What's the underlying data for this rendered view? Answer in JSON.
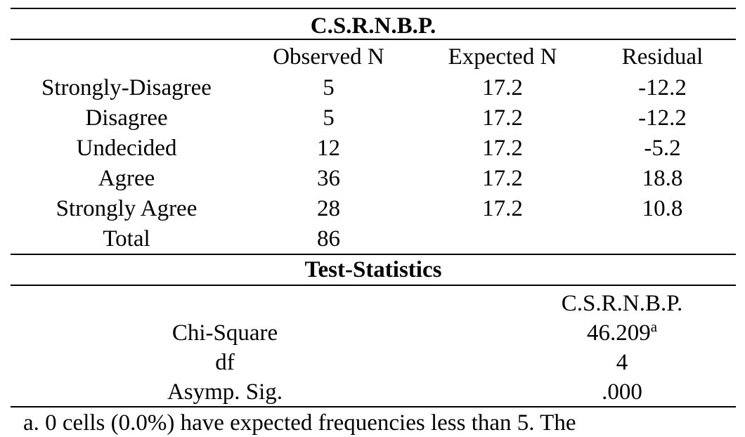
{
  "frequencies": {
    "title": "C.S.R.N.B.P.",
    "headers": [
      "",
      "Observed N",
      "Expected N",
      "Residual"
    ],
    "rows": [
      [
        "Strongly-Disagree",
        "5",
        "17.2",
        "-12.2"
      ],
      [
        "Disagree",
        "5",
        "17.2",
        "-12.2"
      ],
      [
        "Undecided",
        "12",
        "17.2",
        "-5.2"
      ],
      [
        "Agree",
        "36",
        "17.2",
        "18.8"
      ],
      [
        "Strongly Agree",
        "28",
        "17.2",
        "10.8"
      ],
      [
        "Total",
        "86",
        "",
        ""
      ]
    ]
  },
  "test_statistics": {
    "title": "Test-Statistics",
    "column_header": "C.S.R.N.B.P.",
    "rows": [
      {
        "label": "Chi-Square",
        "value": "46.209",
        "note": "a"
      },
      {
        "label": "df",
        "value": "4",
        "note": ""
      },
      {
        "label": "Asymp. Sig.",
        "value": ".000",
        "note": ""
      }
    ]
  },
  "footnote": "a. 0 cells (0.0%) have expected frequencies less than 5. The"
}
